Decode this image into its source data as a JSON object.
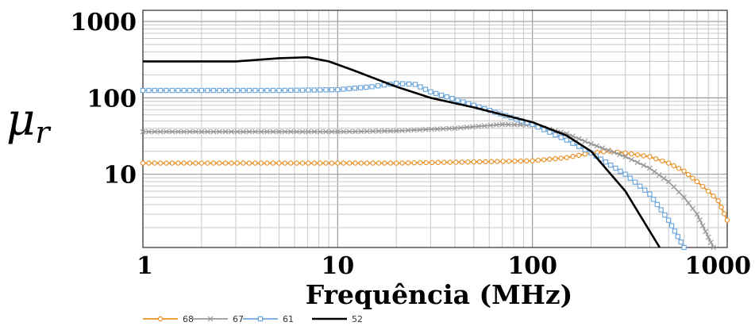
{
  "chart_data": {
    "type": "line",
    "xlabel": "Frequência (MHz)",
    "ylabel": "μ",
    "ylabel_sub": "r",
    "x_scale": "log",
    "y_scale": "log",
    "xlim": [
      1,
      1000
    ],
    "ylim": [
      1.1,
      1400
    ],
    "x_ticks": [
      "1",
      "10",
      "100",
      "1000"
    ],
    "y_ticks": [
      "10",
      "100",
      "1000"
    ],
    "grid": true,
    "legend_position": "bottom-left",
    "series": [
      {
        "name": "68",
        "color": "#e8922a",
        "marker": "circle",
        "points": [
          [
            1,
            14
          ],
          [
            2,
            14
          ],
          [
            5,
            14
          ],
          [
            10,
            14
          ],
          [
            20,
            14
          ],
          [
            50,
            14.5
          ],
          [
            100,
            15
          ],
          [
            150,
            16.5
          ],
          [
            200,
            19
          ],
          [
            250,
            20
          ],
          [
            300,
            19
          ],
          [
            400,
            17
          ],
          [
            500,
            14
          ],
          [
            600,
            11
          ],
          [
            700,
            8
          ],
          [
            800,
            6
          ],
          [
            900,
            4.5
          ],
          [
            1000,
            2.5
          ]
        ]
      },
      {
        "name": "67",
        "color": "#999999",
        "marker": "x",
        "points": [
          [
            1,
            36
          ],
          [
            2,
            36
          ],
          [
            5,
            36
          ],
          [
            10,
            36
          ],
          [
            20,
            37
          ],
          [
            40,
            40
          ],
          [
            70,
            45
          ],
          [
            100,
            44
          ],
          [
            150,
            34
          ],
          [
            200,
            25
          ],
          [
            300,
            17
          ],
          [
            400,
            12
          ],
          [
            500,
            8
          ],
          [
            600,
            5
          ],
          [
            700,
            3
          ],
          [
            800,
            1.5
          ],
          [
            850,
            1.1
          ]
        ]
      },
      {
        "name": "61",
        "color": "#6fa9dc",
        "marker": "square",
        "points": [
          [
            1,
            125
          ],
          [
            2,
            125
          ],
          [
            5,
            125
          ],
          [
            10,
            128
          ],
          [
            15,
            140
          ],
          [
            20,
            155
          ],
          [
            25,
            150
          ],
          [
            30,
            120
          ],
          [
            50,
            80
          ],
          [
            100,
            45
          ],
          [
            150,
            28
          ],
          [
            200,
            19
          ],
          [
            300,
            10
          ],
          [
            400,
            5.5
          ],
          [
            500,
            2.5
          ],
          [
            600,
            1.1
          ]
        ]
      },
      {
        "name": "52",
        "color": "#000000",
        "marker": "none",
        "points": [
          [
            1,
            300
          ],
          [
            3,
            300
          ],
          [
            5,
            330
          ],
          [
            7,
            340
          ],
          [
            9,
            300
          ],
          [
            12,
            230
          ],
          [
            20,
            140
          ],
          [
            30,
            100
          ],
          [
            50,
            75
          ],
          [
            100,
            48
          ],
          [
            150,
            32
          ],
          [
            200,
            20
          ],
          [
            300,
            6
          ],
          [
            400,
            1.8
          ],
          [
            450,
            1.1
          ]
        ]
      }
    ]
  }
}
